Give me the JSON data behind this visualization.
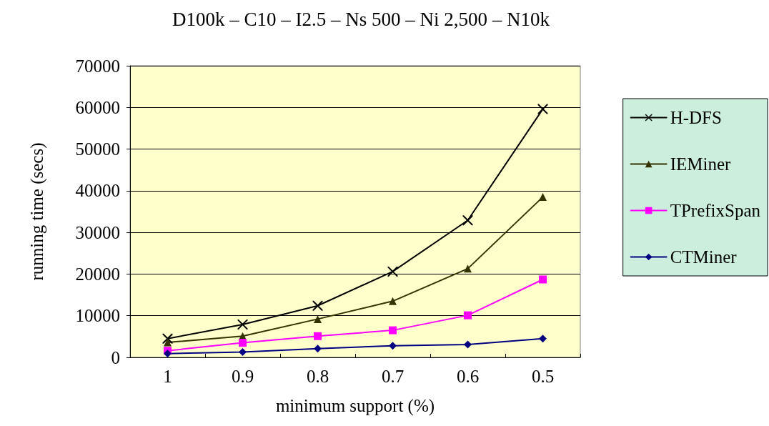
{
  "chart_data": {
    "type": "line",
    "title": "D100k – C10 – I2.5 – Ns 500 – Ni 2,500 – N10k",
    "xlabel": "minimum support (%)",
    "ylabel": "running time (secs)",
    "categories": [
      "1",
      "0.9",
      "0.8",
      "0.7",
      "0.6",
      "0.5"
    ],
    "series": [
      {
        "name": "H-DFS",
        "color": "#000000",
        "marker": "cross",
        "values": [
          4500,
          7900,
          12400,
          20600,
          32900,
          59600
        ]
      },
      {
        "name": "IEMiner",
        "color": "#333300",
        "marker": "triangle",
        "values": [
          3600,
          5100,
          9200,
          13500,
          21300,
          38500
        ]
      },
      {
        "name": "TPrefixSpan",
        "color": "#ff00ff",
        "marker": "square",
        "values": [
          1600,
          3500,
          5100,
          6500,
          10100,
          18700
        ]
      },
      {
        "name": "CTMiner",
        "color": "#000080",
        "marker": "diamond",
        "values": [
          900,
          1300,
          2100,
          2800,
          3100,
          4500
        ]
      }
    ],
    "ylim": [
      0,
      70000
    ],
    "yticks": [
      0,
      10000,
      20000,
      30000,
      40000,
      50000,
      60000,
      70000
    ],
    "grid": "y",
    "legend": "right",
    "line_style": "solid"
  }
}
